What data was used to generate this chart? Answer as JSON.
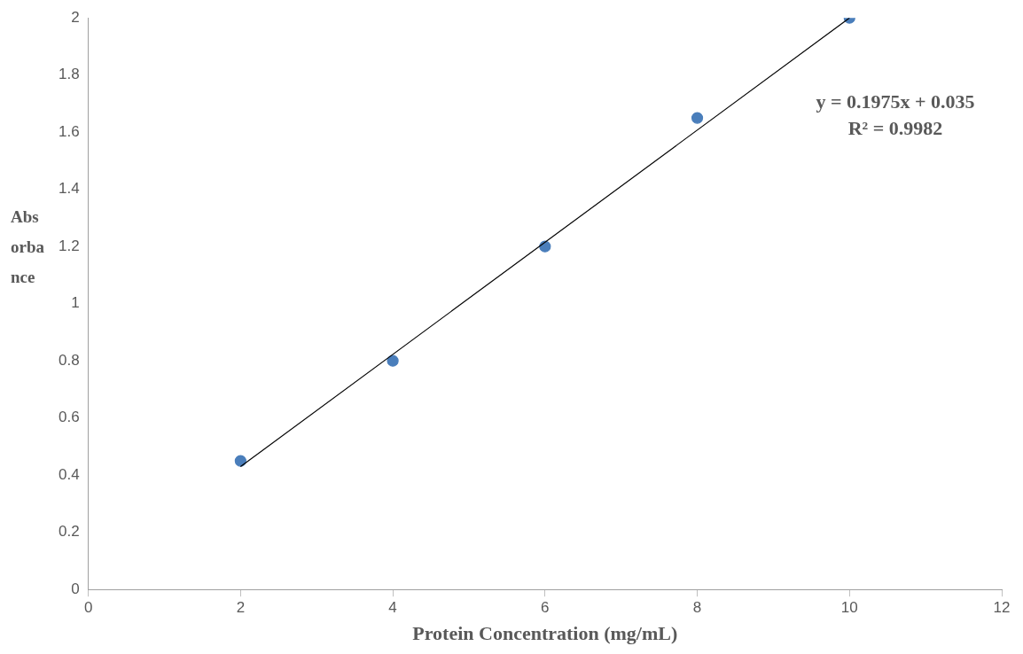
{
  "chart_data": {
    "type": "scatter",
    "xlabel": "Protein Concentration (mg/mL)",
    "ylabel": "Absorbance",
    "x": [
      2,
      4,
      6,
      8,
      10
    ],
    "series": [
      {
        "type": "scatter",
        "color": "#4a7ebb",
        "values": [
          0.45,
          0.8,
          1.2,
          1.65,
          2.0
        ],
        "marker": "circle"
      },
      {
        "type": "line",
        "color": "#000000",
        "x": [
          2,
          10
        ],
        "values": [
          0.43,
          2.0
        ],
        "marker": "none"
      }
    ],
    "xlim": [
      0,
      12
    ],
    "xticks": [
      0,
      2,
      4,
      6,
      8,
      10,
      12
    ],
    "ylim": [
      0,
      2
    ],
    "yticks": [
      0,
      0.2,
      0.4,
      0.6,
      0.8,
      1,
      1.2,
      1.4,
      1.6,
      1.8,
      2
    ],
    "grid": false,
    "legend": false,
    "annotations": [
      "y = 0.1975x + 0.035",
      "R² = 0.9982"
    ]
  }
}
